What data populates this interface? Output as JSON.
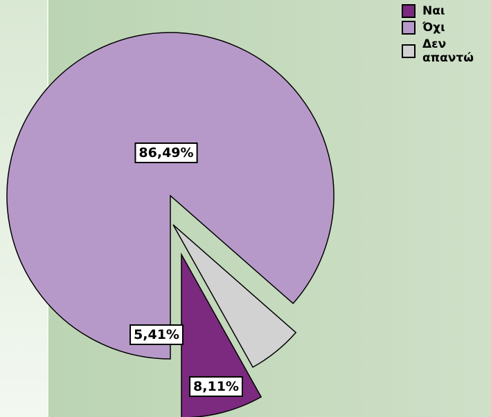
{
  "chart_data": {
    "type": "pie",
    "categories": [
      "Ναι",
      "Όχι",
      "Δεν απαντώ"
    ],
    "values": [
      8.11,
      86.49,
      5.41
    ],
    "value_labels": [
      "8,11%",
      "86,49%",
      "5,41%"
    ],
    "colors": [
      "#7b2a7f",
      "#b799c9",
      "#d2d2d2"
    ],
    "legend": "top-right"
  }
}
